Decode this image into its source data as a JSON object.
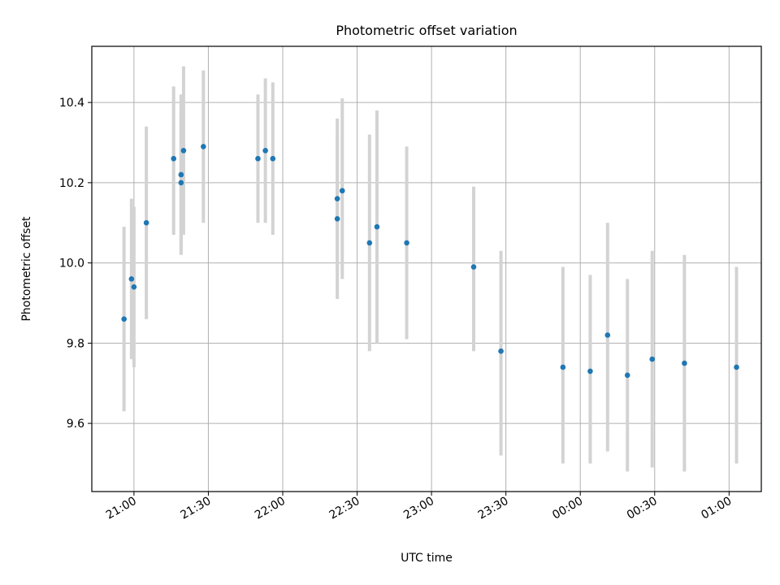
{
  "chart_data": {
    "type": "scatter",
    "title": "Photometric offset variation",
    "xlabel": "UTC time",
    "ylabel": "Photometric offset",
    "x_axis_type": "time",
    "xlim": [
      "20:43:00",
      "01:13:00"
    ],
    "ylim": [
      9.43,
      10.54
    ],
    "x_ticks": [
      {
        "time": "21:00",
        "label": "21:00"
      },
      {
        "time": "21:30",
        "label": "21:30"
      },
      {
        "time": "22:00",
        "label": "22:00"
      },
      {
        "time": "22:30",
        "label": "22:30"
      },
      {
        "time": "23:00",
        "label": "23:00"
      },
      {
        "time": "23:30",
        "label": "23:30"
      },
      {
        "time": "00:00",
        "label": "00:00"
      },
      {
        "time": "00:30",
        "label": "00:30"
      },
      {
        "time": "01:00",
        "label": "01:00"
      }
    ],
    "y_ticks": [
      {
        "value": 9.6,
        "label": "9.6"
      },
      {
        "value": 9.8,
        "label": "9.8"
      },
      {
        "value": 10.0,
        "label": "10.0"
      },
      {
        "value": 10.2,
        "label": "10.2"
      },
      {
        "value": 10.4,
        "label": "10.4"
      }
    ],
    "grid": true,
    "colors": {
      "marker": "#1f77b4",
      "errorbar": "#d3d3d3",
      "grid": "#b0b0b0"
    },
    "points": [
      {
        "time": "20:56",
        "y": 9.86,
        "ylow": 9.63,
        "yhigh": 10.09
      },
      {
        "time": "20:59",
        "y": 9.96,
        "ylow": 9.76,
        "yhigh": 10.16
      },
      {
        "time": "21:00",
        "y": 9.94,
        "ylow": 9.74,
        "yhigh": 10.14
      },
      {
        "time": "21:05",
        "y": 10.1,
        "ylow": 9.86,
        "yhigh": 10.34
      },
      {
        "time": "21:16",
        "y": 10.26,
        "ylow": 10.07,
        "yhigh": 10.44
      },
      {
        "time": "21:19",
        "y": 10.2,
        "ylow": 10.02,
        "yhigh": 10.38
      },
      {
        "time": "21:19",
        "y": 10.22,
        "ylow": 10.03,
        "yhigh": 10.42
      },
      {
        "time": "21:20",
        "y": 10.28,
        "ylow": 10.07,
        "yhigh": 10.49
      },
      {
        "time": "21:28",
        "y": 10.29,
        "ylow": 10.1,
        "yhigh": 10.48
      },
      {
        "time": "21:50",
        "y": 10.26,
        "ylow": 10.1,
        "yhigh": 10.42
      },
      {
        "time": "21:53",
        "y": 10.28,
        "ylow": 10.1,
        "yhigh": 10.46
      },
      {
        "time": "21:56",
        "y": 10.26,
        "ylow": 10.07,
        "yhigh": 10.45
      },
      {
        "time": "22:22",
        "y": 10.16,
        "ylow": 9.97,
        "yhigh": 10.36
      },
      {
        "time": "22:22",
        "y": 10.11,
        "ylow": 9.91,
        "yhigh": 10.32
      },
      {
        "time": "22:24",
        "y": 10.18,
        "ylow": 9.96,
        "yhigh": 10.41
      },
      {
        "time": "22:35",
        "y": 10.05,
        "ylow": 9.78,
        "yhigh": 10.32
      },
      {
        "time": "22:38",
        "y": 10.09,
        "ylow": 9.8,
        "yhigh": 10.38
      },
      {
        "time": "22:50",
        "y": 10.05,
        "ylow": 9.81,
        "yhigh": 10.29
      },
      {
        "time": "23:17",
        "y": 9.99,
        "ylow": 9.78,
        "yhigh": 10.19
      },
      {
        "time": "23:28",
        "y": 9.78,
        "ylow": 9.52,
        "yhigh": 10.03
      },
      {
        "time": "23:53",
        "y": 9.74,
        "ylow": 9.5,
        "yhigh": 9.99
      },
      {
        "time": "00:04",
        "y": 9.73,
        "ylow": 9.5,
        "yhigh": 9.97
      },
      {
        "time": "00:11",
        "y": 9.82,
        "ylow": 9.53,
        "yhigh": 10.1
      },
      {
        "time": "00:19",
        "y": 9.72,
        "ylow": 9.48,
        "yhigh": 9.96
      },
      {
        "time": "00:29",
        "y": 9.76,
        "ylow": 9.49,
        "yhigh": 10.03
      },
      {
        "time": "00:42",
        "y": 9.75,
        "ylow": 9.48,
        "yhigh": 10.02
      },
      {
        "time": "01:03",
        "y": 9.74,
        "ylow": 9.5,
        "yhigh": 9.99
      }
    ]
  }
}
